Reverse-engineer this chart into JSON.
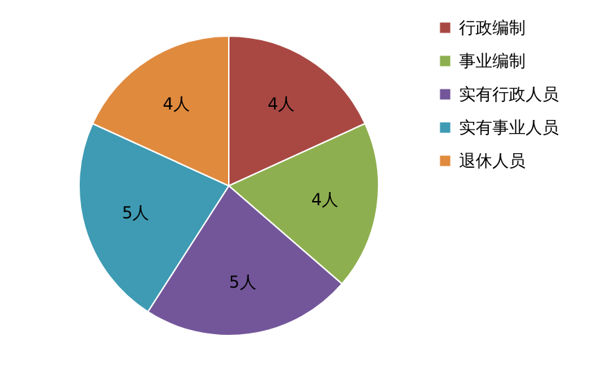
{
  "chart_data": {
    "type": "pie",
    "categories": [
      "行政编制",
      "事业编制",
      "实有行政人员",
      "实有事业人员",
      "退休人员"
    ],
    "values": [
      4,
      4,
      5,
      5,
      4
    ],
    "colors": [
      "#a94843",
      "#8eaf4f",
      "#73569a",
      "#3e9bb3",
      "#e08a3e"
    ],
    "value_labels": [
      "4人",
      "4人",
      "5人",
      "5人",
      "4人"
    ],
    "legend": "right"
  }
}
